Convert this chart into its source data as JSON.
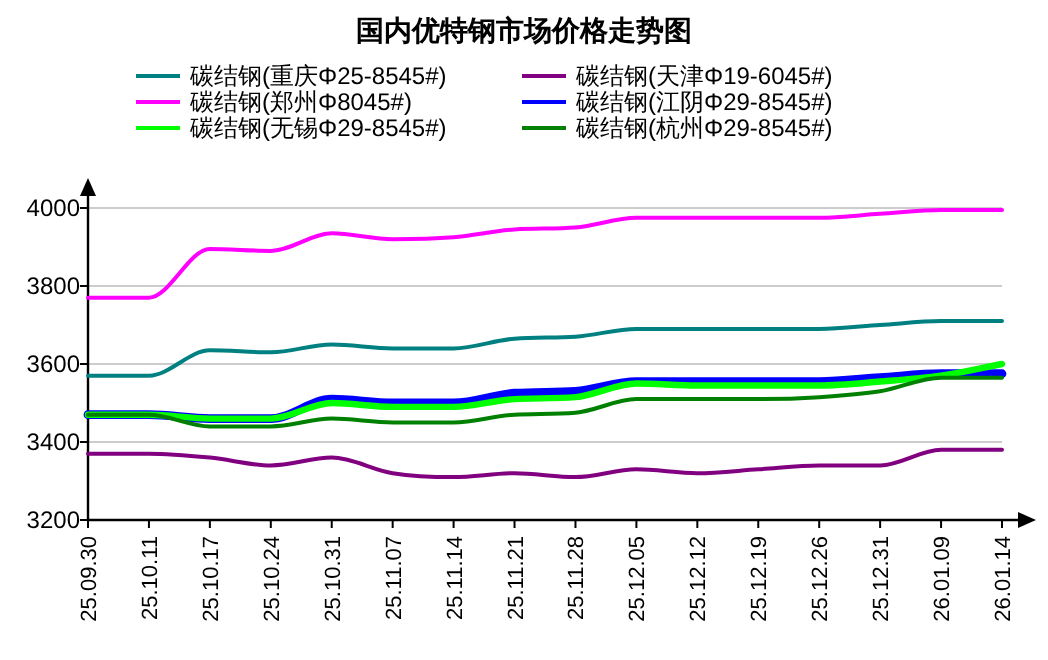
{
  "chart_data": {
    "type": "line",
    "title": "国内优特钢市场价格走势图",
    "categories": [
      "25.09.30",
      "25.10.11",
      "25.10.17",
      "25.10.24",
      "25.10.31",
      "25.11.07",
      "25.11.14",
      "25.11.21",
      "25.11.28",
      "25.12.05",
      "25.12.12",
      "25.12.19",
      "25.12.26",
      "25.12.31",
      "26.01.09",
      "26.01.14"
    ],
    "series": [
      {
        "name": "碳结钢(重庆Φ25-8545#)",
        "color": "#008080",
        "values": [
          3570,
          3570,
          3635,
          3630,
          3650,
          3640,
          3640,
          3665,
          3670,
          3690,
          3690,
          3690,
          3690,
          3700,
          3710,
          3710
        ]
      },
      {
        "name": "碳结钢(天津Φ19-6045#)",
        "color": "#800080",
        "values": [
          3370,
          3370,
          3360,
          3340,
          3360,
          3320,
          3310,
          3320,
          3310,
          3330,
          3320,
          3330,
          3340,
          3340,
          3380,
          3380
        ]
      },
      {
        "name": "碳结钢(郑州Φ8045#)",
        "color": "#ff00ff",
        "values": [
          3770,
          3770,
          3895,
          3890,
          3935,
          3920,
          3925,
          3945,
          3950,
          3975,
          3975,
          3975,
          3975,
          3985,
          3995,
          3995
        ]
      },
      {
        "name": "碳结钢(江阴Φ29-8545#)",
        "color": "#0000ff",
        "values": [
          3470,
          3470,
          3460,
          3460,
          3510,
          3500,
          3500,
          3525,
          3530,
          3555,
          3555,
          3555,
          3555,
          3565,
          3575,
          3575
        ]
      },
      {
        "name": "碳结钢(无锡Φ29-8545#)",
        "color": "#00ff00",
        "values": [
          3470,
          3470,
          3460,
          3460,
          3500,
          3490,
          3490,
          3510,
          3515,
          3550,
          3545,
          3545,
          3545,
          3555,
          3570,
          3600
        ]
      },
      {
        "name": "碳结钢(杭州Φ29-8545#)",
        "color": "#008000",
        "values": [
          3470,
          3470,
          3440,
          3440,
          3460,
          3450,
          3450,
          3470,
          3475,
          3510,
          3510,
          3510,
          3515,
          3530,
          3565,
          3565
        ]
      }
    ],
    "ylim": [
      3200,
      4000
    ],
    "yticks": [
      3200,
      3400,
      3600,
      3800,
      4000
    ],
    "grid": "y",
    "legend": "top",
    "line_style": "solid"
  }
}
